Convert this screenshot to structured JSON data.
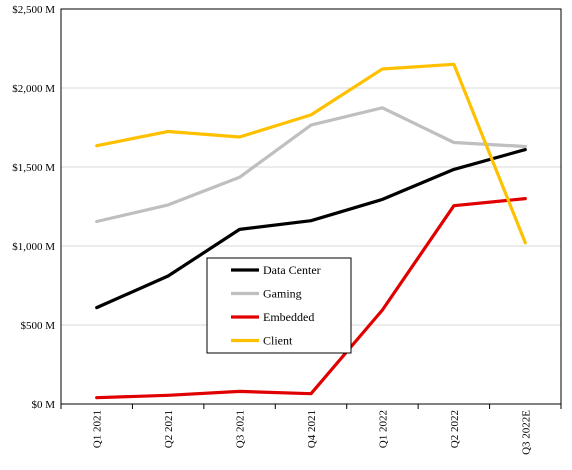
{
  "chart_data": {
    "type": "line",
    "title": "",
    "xlabel": "",
    "ylabel": "",
    "categories": [
      "Q1 2021",
      "Q2 2021",
      "Q3 2021",
      "Q4 2021",
      "Q1 2022",
      "Q2 2022",
      "Q3 2022E"
    ],
    "ylim": [
      0,
      2500
    ],
    "yticks": [
      0,
      500,
      1000,
      1500,
      2000,
      2500
    ],
    "ytick_labels": [
      "$0 M",
      "$500 M",
      "$1,000 M",
      "$1,500 M",
      "$2,000 M",
      "$2,500 M"
    ],
    "grid": true,
    "legend_position": "lower-center",
    "series": [
      {
        "name": "Data Center",
        "color": "#000000",
        "values": [
          610,
          810,
          1105,
          1160,
          1295,
          1485,
          1610
        ]
      },
      {
        "name": "Gaming",
        "color": "#bfbfbf",
        "values": [
          1155,
          1260,
          1435,
          1765,
          1875,
          1655,
          1630
        ]
      },
      {
        "name": "Embedded",
        "color": "#e00000",
        "values": [
          40,
          55,
          80,
          65,
          595,
          1255,
          1300
        ]
      },
      {
        "name": "Client",
        "color": "#ffc000",
        "values": [
          1635,
          1725,
          1690,
          1830,
          2120,
          2150,
          1020
        ]
      }
    ]
  }
}
